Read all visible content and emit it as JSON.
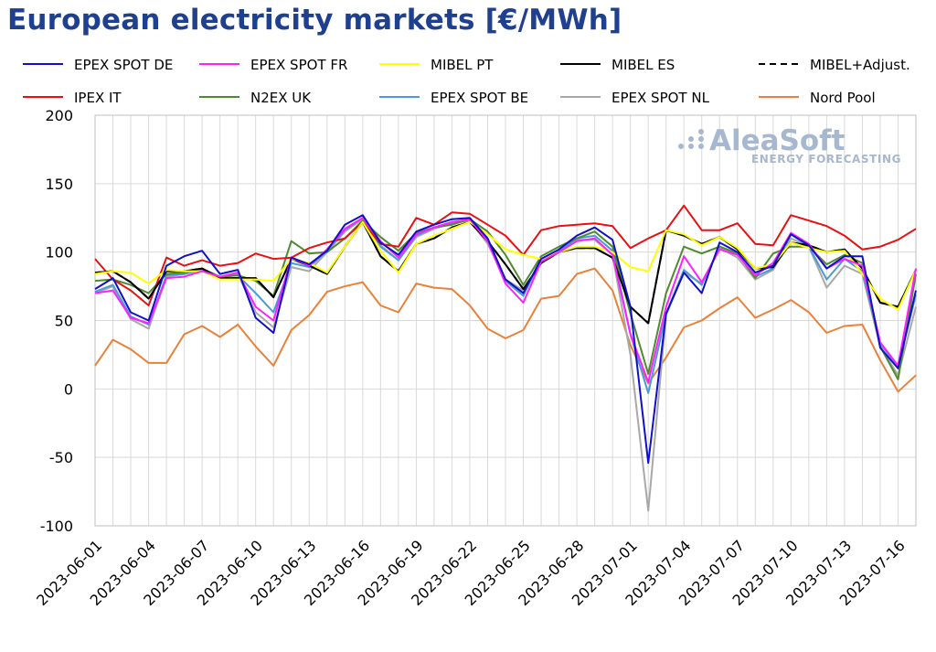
{
  "chart_data": {
    "type": "line",
    "title": "European electricity markets [€/MWh]",
    "xlabel": "",
    "ylabel": "",
    "ylim": [
      -100,
      200
    ],
    "yticks": [
      200,
      150,
      100,
      50,
      0,
      -50,
      -100
    ],
    "grid": true,
    "legend_position": "top",
    "x": [
      "2023-06-01",
      "2023-06-02",
      "2023-06-03",
      "2023-06-04",
      "2023-06-05",
      "2023-06-06",
      "2023-06-07",
      "2023-06-08",
      "2023-06-09",
      "2023-06-10",
      "2023-06-11",
      "2023-06-12",
      "2023-06-13",
      "2023-06-14",
      "2023-06-15",
      "2023-06-16",
      "2023-06-17",
      "2023-06-18",
      "2023-06-19",
      "2023-06-20",
      "2023-06-21",
      "2023-06-22",
      "2023-06-23",
      "2023-06-24",
      "2023-06-25",
      "2023-06-26",
      "2023-06-27",
      "2023-06-28",
      "2023-06-29",
      "2023-06-30",
      "2023-07-01",
      "2023-07-02",
      "2023-07-03",
      "2023-07-04",
      "2023-07-05",
      "2023-07-06",
      "2023-07-07",
      "2023-07-08",
      "2023-07-09",
      "2023-07-10",
      "2023-07-11",
      "2023-07-12",
      "2023-07-13",
      "2023-07-14",
      "2023-07-15",
      "2023-07-16",
      "2023-07-17"
    ],
    "xtick_labels": [
      "2023-06-01",
      "2023-06-04",
      "2023-06-07",
      "2023-06-10",
      "2023-06-13",
      "2023-06-16",
      "2023-06-19",
      "2023-06-22",
      "2023-06-25",
      "2023-06-28",
      "2023-07-01",
      "2023-07-04",
      "2023-07-07",
      "2023-07-10",
      "2023-07-13",
      "2023-07-16"
    ],
    "series": [
      {
        "name": "EPEX SPOT DE",
        "color": "#1010c8",
        "dash": false,
        "values": [
          73,
          81,
          56,
          50,
          90,
          97,
          101,
          84,
          87,
          52,
          41,
          96,
          91,
          101,
          120,
          127,
          107,
          98,
          115,
          120,
          124,
          125,
          110,
          80,
          70,
          95,
          102,
          112,
          118,
          109,
          60,
          -54,
          55,
          85,
          70,
          107,
          100,
          85,
          90,
          113,
          105,
          88,
          97,
          97,
          30,
          15,
          72
        ]
      },
      {
        "name": "EPEX SPOT FR",
        "color": "#ff20ff",
        "dash": false,
        "values": [
          70,
          72,
          52,
          48,
          81,
          82,
          86,
          82,
          85,
          60,
          50,
          96,
          90,
          102,
          117,
          125,
          108,
          96,
          113,
          118,
          122,
          124,
          108,
          77,
          63,
          93,
          100,
          108,
          110,
          98,
          40,
          5,
          60,
          97,
          78,
          102,
          98,
          83,
          92,
          114,
          106,
          88,
          95,
          90,
          34,
          17,
          88
        ]
      },
      {
        "name": "MIBEL PT",
        "color": "#ffff00",
        "dash": false,
        "values": [
          84,
          86,
          85,
          77,
          87,
          86,
          86,
          80,
          80,
          80,
          79,
          95,
          92,
          85,
          104,
          122,
          101,
          85,
          106,
          112,
          117,
          122,
          113,
          102,
          98,
          95,
          100,
          104,
          104,
          100,
          89,
          86,
          116,
          113,
          105,
          111,
          103,
          88,
          91,
          107,
          103,
          100,
          101,
          84,
          66,
          58,
          87
        ]
      },
      {
        "name": "MIBEL ES",
        "color": "#000000",
        "dash": false,
        "values": [
          85,
          86,
          78,
          66,
          86,
          86,
          88,
          81,
          81,
          81,
          67,
          95,
          90,
          84,
          104,
          122,
          97,
          86,
          106,
          110,
          118,
          122,
          108,
          91,
          73,
          92,
          100,
          103,
          103,
          96,
          60,
          48,
          116,
          112,
          106,
          111,
          102,
          88,
          89,
          107,
          105,
          100,
          102,
          88,
          63,
          60,
          87
        ]
      },
      {
        "name": "MIBEL+Adjust.",
        "color": "#000000",
        "dash": true,
        "values": [
          85,
          86,
          78,
          66,
          86,
          86,
          88,
          81,
          81,
          81,
          67,
          95,
          90,
          84,
          104,
          122,
          97,
          86,
          106,
          110,
          118,
          122,
          108,
          91,
          73,
          92,
          100,
          103,
          103,
          96,
          60,
          48,
          116,
          112,
          106,
          111,
          102,
          88,
          89,
          107,
          105,
          100,
          102,
          88,
          63,
          60,
          87
        ]
      },
      {
        "name": "IPEX IT",
        "color": "#e81010",
        "dash": false,
        "values": [
          95,
          80,
          72,
          61,
          96,
          90,
          94,
          90,
          92,
          99,
          95,
          96,
          103,
          107,
          110,
          122,
          106,
          104,
          125,
          120,
          129,
          128,
          120,
          112,
          98,
          116,
          119,
          120,
          121,
          119,
          103,
          110,
          116,
          134,
          116,
          116,
          121,
          106,
          105,
          127,
          123,
          119,
          112,
          102,
          104,
          109,
          117
        ]
      },
      {
        "name": "N2EX UK",
        "color": "#4f8a2e",
        "dash": false,
        "values": [
          79,
          80,
          76,
          70,
          84,
          85,
          88,
          82,
          83,
          79,
          68,
          108,
          99,
          100,
          110,
          123,
          111,
          101,
          114,
          118,
          120,
          124,
          115,
          98,
          76,
          97,
          104,
          110,
          115,
          104,
          55,
          11,
          70,
          104,
          99,
          104,
          99,
          81,
          99,
          104,
          104,
          91,
          98,
          92,
          31,
          7,
          84
        ]
      },
      {
        "name": "EPEX SPOT BE",
        "color": "#4a9ad8",
        "dash": false,
        "values": [
          71,
          76,
          53,
          47,
          83,
          84,
          87,
          82,
          83,
          70,
          56,
          92,
          89,
          101,
          116,
          125,
          104,
          94,
          112,
          118,
          121,
          124,
          108,
          79,
          68,
          95,
          101,
          110,
          112,
          101,
          40,
          -3,
          55,
          87,
          76,
          104,
          99,
          82,
          88,
          113,
          104,
          80,
          95,
          86,
          33,
          16,
          69
        ]
      },
      {
        "name": "EPEX SPOT NL",
        "color": "#a8a8a8",
        "dash": false,
        "values": [
          70,
          75,
          51,
          44,
          82,
          84,
          88,
          80,
          84,
          56,
          45,
          89,
          86,
          100,
          115,
          124,
          105,
          94,
          111,
          117,
          121,
          123,
          106,
          80,
          72,
          92,
          101,
          109,
          109,
          98,
          25,
          -89,
          54,
          85,
          77,
          103,
          96,
          80,
          87,
          110,
          104,
          74,
          90,
          84,
          31,
          10,
          60
        ]
      },
      {
        "name": "Nord Pool",
        "color": "#e8823a",
        "dash": false,
        "values": [
          17,
          36,
          29,
          19,
          19,
          40,
          46,
          38,
          47,
          31,
          17,
          43,
          54,
          71,
          75,
          78,
          61,
          56,
          77,
          74,
          73,
          61,
          44,
          37,
          43,
          66,
          68,
          84,
          88,
          72,
          32,
          4,
          23,
          45,
          50,
          59,
          67,
          52,
          58,
          65,
          56,
          41,
          46,
          47,
          21,
          -2,
          10
        ]
      }
    ]
  },
  "logo": {
    "name": "AleaSoft",
    "tagline": "ENERGY FORECASTING"
  }
}
